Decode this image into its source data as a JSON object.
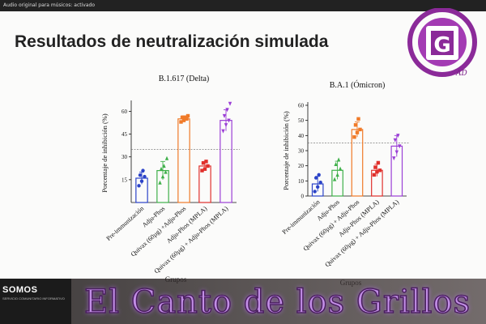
{
  "window": {
    "topbar_text": "Audio original para músicos: activado"
  },
  "slide": {
    "title": "Resultados de neutralización simulada"
  },
  "logo": {
    "letter": "G",
    "subtitle": "AD",
    "color": "#8b2a99"
  },
  "banner": {
    "text": "El Canto de los Grillos",
    "station": "SOMOS",
    "station_sub": "SERVICIO COMUNITARIO INFORMATIVO",
    "color": "#c28ee6"
  },
  "chart_data": [
    {
      "type": "bar",
      "title": "B.1.617 (Delta)",
      "xlabel": "Grupos",
      "ylabel": "Porcentaje de inhibición (%)",
      "ylim": [
        0,
        65
      ],
      "yticks": [
        "15",
        "30",
        "45",
        "60"
      ],
      "threshold": 35,
      "categories": [
        "Pre-immunización",
        "Adju-Phos",
        "Quivax (60µg) +Adju-Phos",
        "Adju-Phos (MPLA)",
        "Quivax (60µg) + Adju-Phos (MPLA)"
      ],
      "values": [
        16,
        21,
        55,
        24,
        54
      ],
      "errors": [
        4,
        6,
        2,
        3,
        7
      ],
      "colors": [
        "#2b43c8",
        "#3fb04a",
        "#f07a28",
        "#e0302c",
        "#9b3fd6"
      ],
      "markers": [
        "circle",
        "triangle",
        "square",
        "square",
        "triangle-down"
      ],
      "points": [
        [
          11,
          14,
          17,
          18,
          21
        ],
        [
          13,
          17,
          20,
          22,
          24,
          29
        ],
        [
          53,
          54,
          55,
          56,
          56,
          57
        ],
        [
          21,
          22,
          24,
          26,
          27
        ],
        [
          47,
          51,
          54,
          57,
          61,
          65
        ]
      ]
    },
    {
      "type": "bar",
      "title": "B.A.1 (Ómicron)",
      "xlabel": "Grupos",
      "ylabel": "Porcentaje de inhibición (%)",
      "ylim": [
        0,
        60
      ],
      "yticks": [
        "0",
        "10",
        "20",
        "30",
        "40",
        "50",
        "60"
      ],
      "threshold": 35,
      "categories": [
        "Pre-immunización",
        "Adju-Phos",
        "Quivax (60µg) + Adju-Phos",
        "Adju-Phos (MPLA)",
        "Quivax (60µg) + Adju-Phos (MPLA)"
      ],
      "values": [
        8,
        17,
        44,
        17,
        33
      ],
      "errors": [
        5,
        6,
        5,
        4,
        7
      ],
      "colors": [
        "#2b43c8",
        "#3fb04a",
        "#f07a28",
        "#e0302c",
        "#9b3fd6"
      ],
      "markers": [
        "circle",
        "triangle",
        "square",
        "square",
        "triangle-down"
      ],
      "points": [
        [
          3,
          6,
          9,
          12,
          14
        ],
        [
          11,
          14,
          18,
          21,
          24
        ],
        [
          39,
          42,
          44,
          47,
          51
        ],
        [
          14,
          16,
          17,
          19,
          22
        ],
        [
          25,
          29,
          33,
          37,
          40
        ]
      ]
    }
  ]
}
